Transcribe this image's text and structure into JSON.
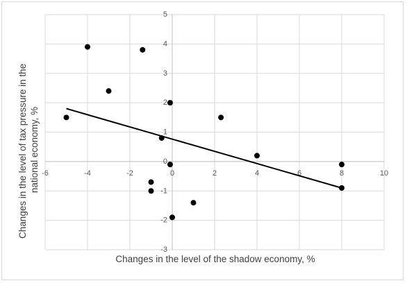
{
  "chart_data": {
    "type": "scatter",
    "title": "",
    "xlabel": "Changes in the level of the shadow economy, %",
    "ylabel_lines": [
      "Changes in the level of tax pressure in the",
      "national economy, %"
    ],
    "xlim": [
      -6,
      10
    ],
    "ylim": [
      -3,
      5
    ],
    "x_ticks": [
      -6,
      -4,
      -2,
      0,
      2,
      4,
      6,
      8,
      10
    ],
    "y_ticks": [
      -3,
      -2,
      -1,
      0,
      1,
      2,
      3,
      4,
      5
    ],
    "grid": "both",
    "legend": "none",
    "series": [
      {
        "x": [
          -5,
          -4,
          -3,
          -1.4,
          -1,
          -1,
          -0.5,
          -0.1,
          -0.1,
          0,
          1,
          2.3,
          4,
          8,
          8
        ],
        "y": [
          1.5,
          3.9,
          2.4,
          3.8,
          -0.7,
          -1.0,
          0.8,
          2.0,
          -0.1,
          -1.9,
          -1.4,
          1.5,
          0.2,
          -0.1,
          -0.9
        ],
        "color": "#000000"
      }
    ],
    "trendline": {
      "x": [
        -5,
        8
      ],
      "y": [
        1.8,
        -0.9
      ],
      "color": "#000000"
    }
  }
}
